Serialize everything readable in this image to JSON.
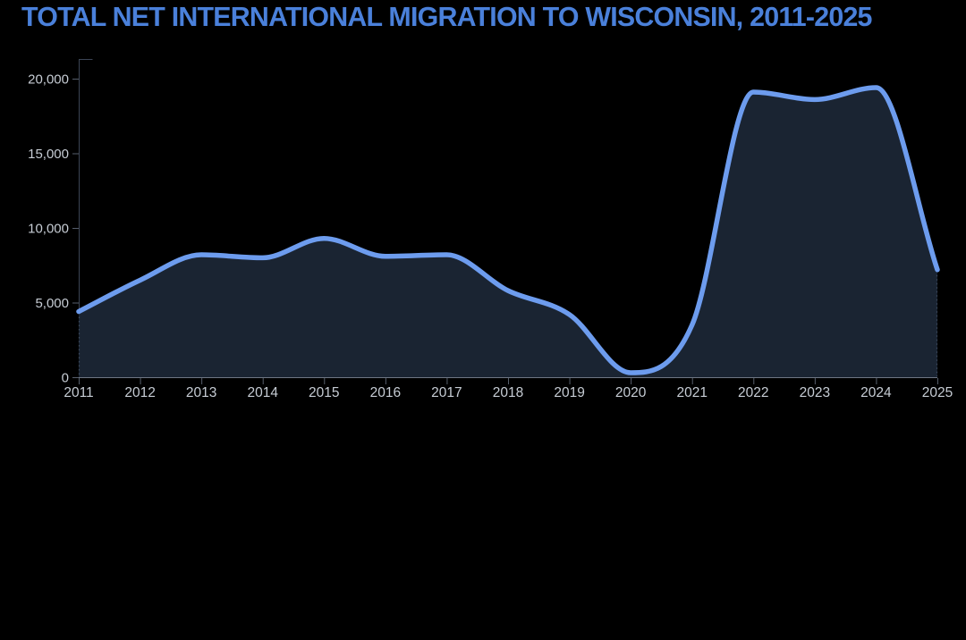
{
  "title": "TOTAL NET INTERNATIONAL MIGRATION TO WISCONSIN, 2011-2025",
  "chart_data": {
    "type": "area",
    "x": [
      2011,
      2012,
      2013,
      2014,
      2015,
      2016,
      2017,
      2018,
      2019,
      2020,
      2021,
      2022,
      2023,
      2024,
      2025
    ],
    "values": [
      4400,
      6500,
      8200,
      8000,
      9300,
      8100,
      8200,
      5800,
      4200,
      300,
      3500,
      19100,
      18600,
      19400,
      7200
    ],
    "series_name": "Total net international migration",
    "title": "TOTAL NET INTERNATIONAL MIGRATION TO WISCONSIN, 2011-2025",
    "xlabel": "",
    "ylabel": "",
    "ylim": [
      0,
      20000
    ],
    "yticks": [
      0,
      5000,
      10000,
      15000,
      20000
    ],
    "ytick_labels": [
      "0",
      "5,000",
      "10,000",
      "15,000",
      "20,000"
    ],
    "xtick_labels": [
      "2011",
      "2012",
      "2013",
      "2014",
      "2015",
      "2016",
      "2017",
      "2018",
      "2019",
      "2020",
      "2021",
      "2022",
      "2023",
      "2024",
      "2025"
    ],
    "grid": false,
    "legend": false,
    "curve": "monotone"
  },
  "colors": {
    "background": "#000000",
    "title": "#4a80da",
    "line": "#6d9cee",
    "area_fill": "#1a2432",
    "axis_label": "#c6ccd4",
    "axis_line": "#3c4555",
    "baseline": "#6e7683",
    "tick": "#565e6b",
    "edge_dotted": "#3e4b60"
  }
}
